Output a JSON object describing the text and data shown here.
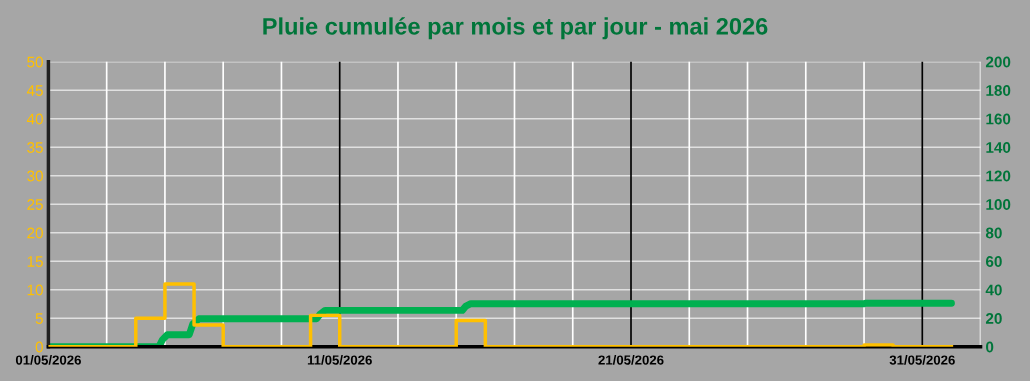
{
  "chart_data": {
    "type": "line",
    "title": "Pluie cumulée par mois et par jour - mai 2026",
    "xlim": [
      "2026-05-01",
      "2026-06-02"
    ],
    "xticks": [
      {
        "value": "2026-05-01",
        "label": "01/05/2026"
      },
      {
        "value": "2026-05-03",
        "label": null
      },
      {
        "value": "2026-05-05",
        "label": null
      },
      {
        "value": "2026-05-07",
        "label": null
      },
      {
        "value": "2026-05-09",
        "label": null
      },
      {
        "value": "2026-05-11",
        "label": "11/05/2026"
      },
      {
        "value": "2026-05-13",
        "label": null
      },
      {
        "value": "2026-05-15",
        "label": null
      },
      {
        "value": "2026-05-17",
        "label": null
      },
      {
        "value": "2026-05-19",
        "label": null
      },
      {
        "value": "2026-05-21",
        "label": "21/05/2026"
      },
      {
        "value": "2026-05-23",
        "label": null
      },
      {
        "value": "2026-05-25",
        "label": null
      },
      {
        "value": "2026-05-27",
        "label": null
      },
      {
        "value": "2026-05-29",
        "label": null
      },
      {
        "value": "2026-05-31",
        "label": "31/05/2026"
      },
      {
        "value": "2026-06-02",
        "label": null
      }
    ],
    "ylim": [
      0,
      50
    ],
    "yticks": [
      0,
      5,
      10,
      15,
      20,
      25,
      30,
      35,
      40,
      45,
      50
    ],
    "y2lim": [
      0,
      200
    ],
    "y2ticks": [
      0,
      20,
      40,
      60,
      80,
      100,
      120,
      140,
      160,
      180,
      200
    ],
    "grid": true,
    "legend": false,
    "marker": "none",
    "line_style": "solid",
    "series": [
      {
        "type": "step",
        "color": "#ffc000",
        "x": [
          "2026-05-01",
          "2026-05-02",
          "2026-05-03",
          "2026-05-04",
          "2026-05-05",
          "2026-05-06",
          "2026-05-07",
          "2026-05-08",
          "2026-05-09",
          "2026-05-10",
          "2026-05-11",
          "2026-05-12",
          "2026-05-13",
          "2026-05-14",
          "2026-05-15",
          "2026-05-16",
          "2026-05-17",
          "2026-05-18",
          "2026-05-19",
          "2026-05-20",
          "2026-05-21",
          "2026-05-22",
          "2026-05-23",
          "2026-05-24",
          "2026-05-25",
          "2026-05-26",
          "2026-05-27",
          "2026-05-28",
          "2026-05-29",
          "2026-05-30",
          "2026-05-31",
          "2026-06-01"
        ],
        "values": [
          0,
          0,
          0,
          5,
          11,
          3.8,
          0,
          0,
          0,
          5.5,
          0,
          0,
          0,
          0,
          4.6,
          0,
          0,
          0,
          0,
          0,
          0,
          0,
          0,
          0,
          0,
          0,
          0,
          0,
          0.3,
          0,
          0,
          0
        ]
      },
      {
        "color": "#00b050",
        "axis": "y2",
        "x": [
          "2026-05-01T00:00",
          "2026-05-04T19:00",
          "2026-05-04T22:00",
          "2026-05-05T02:00",
          "2026-05-05T20:00",
          "2026-05-05T23:00",
          "2026-05-06T04:00",
          "2026-05-10T05:00",
          "2026-05-10T08:00",
          "2026-05-10T12:00",
          "2026-05-15T05:00",
          "2026-05-15T08:00",
          "2026-05-15T12:00",
          "2026-05-29T00:00",
          "2026-05-29T01:00",
          "2026-06-01T00:00"
        ],
        "values": [
          0,
          0,
          5,
          8.4,
          8.4,
          16,
          19.6,
          19.6,
          23,
          25.5,
          25.5,
          28.5,
          30.2,
          30.2,
          30.5,
          30.5
        ]
      }
    ]
  }
}
